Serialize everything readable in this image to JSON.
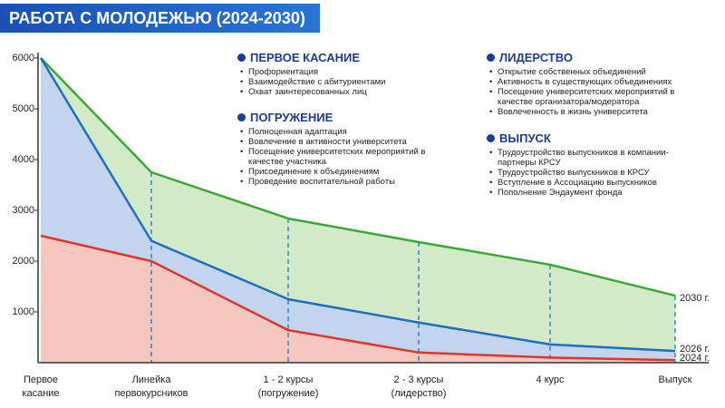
{
  "chart_data": {
    "type": "area",
    "title": "РАБОТА С МОЛОДЕЖЬЮ (2024-2030)",
    "categories": [
      "Первое касание",
      "Линейка первокурсников",
      "1 - 2 курсы (погружение)",
      "2 - 3 курсы (лидерство)",
      "4 курс",
      "Выпуск"
    ],
    "series": [
      {
        "name": "2030 г.",
        "color": "#3aa935",
        "fill": "#d3eac9",
        "values": [
          6000,
          3750,
          2840,
          2375,
          1930,
          1320
        ]
      },
      {
        "name": "2026 г.",
        "color": "#1f6fc1",
        "fill": "#c3d4ee",
        "values": [
          6000,
          2400,
          1250,
          790,
          360,
          230
        ]
      },
      {
        "name": "2024 г.",
        "color": "#e0352b",
        "fill": "#f5c7bf",
        "values": [
          2500,
          2000,
          640,
          200,
          100,
          50
        ]
      }
    ],
    "ylim": [
      0,
      6000
    ],
    "yticks": [
      1000,
      2000,
      3000,
      4000,
      5000,
      6000
    ]
  },
  "panels": [
    {
      "title": "ПЕРВОЕ КАСАНИЕ",
      "items": [
        "Профориентация",
        "Взаимодействие с абитуриентами",
        "Охват заинтересованных лиц"
      ]
    },
    {
      "title": "ПОГРУЖЕНИЕ",
      "items": [
        "Полноценная адаптация",
        "Вовлечение в активности университета",
        "Посещение университетских мероприятий в качестве участника",
        "Присоединение к объединениям",
        "Проведение воспитательной работы"
      ]
    },
    {
      "title": "ЛИДЕРСТВО",
      "items": [
        "Открытие собственных объединений",
        "Активность в существующих объединениях",
        "Посещение университетских мероприятий в качестве организатора/модератора",
        "Вовлеченность в жизнь университета"
      ]
    },
    {
      "title": "ВЫПУСК",
      "items": [
        "Трудоустройство выпускников в компании-партнеры КРСУ",
        "Трудоустройство выпускников в КРСУ",
        "Вступление в Ассоциацию выпускников",
        "Пополнение Эндаумент фонда"
      ]
    }
  ]
}
